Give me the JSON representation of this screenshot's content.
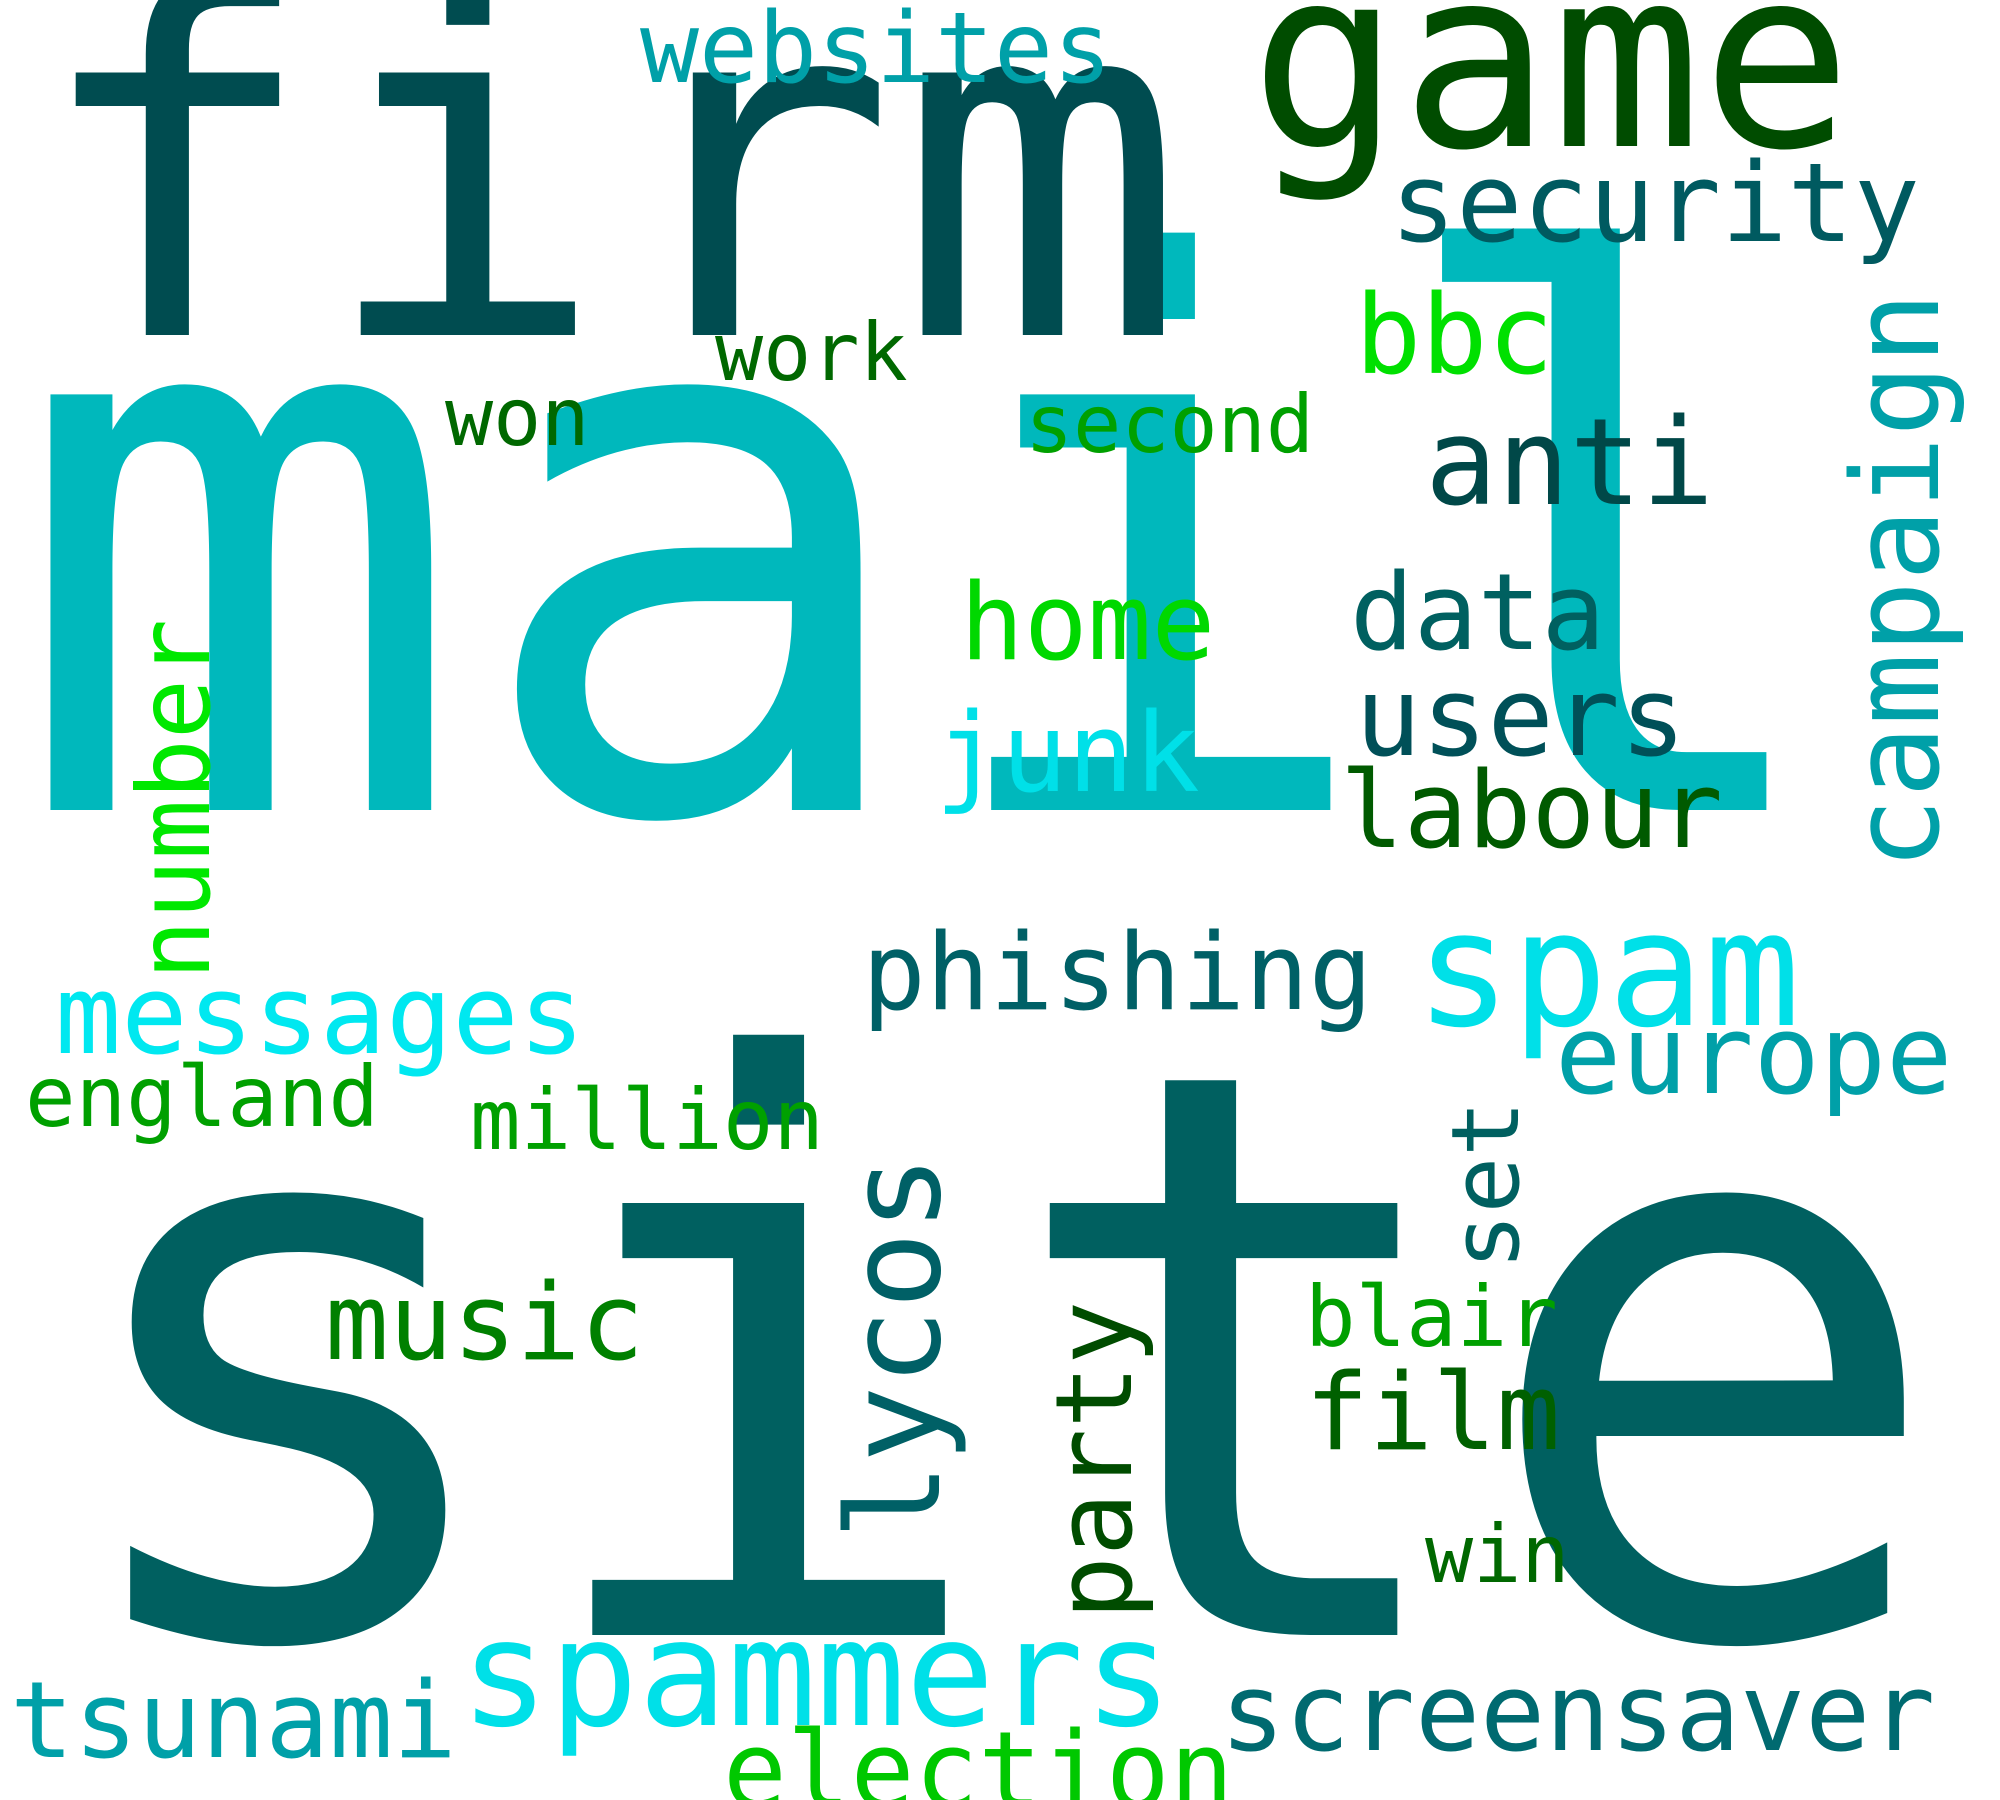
{
  "words": {
    "site": {
      "text": "site",
      "color": "#006060"
    },
    "mail": {
      "text": "mail",
      "color": "#00b8bc"
    },
    "firm": {
      "text": "firm",
      "color": "#004c50"
    },
    "game": {
      "text": "game",
      "color": "#004c00"
    },
    "websites": {
      "text": "websites",
      "color": "#00a0a8"
    },
    "security": {
      "text": "security",
      "color": "#005a60"
    },
    "bbc": {
      "text": "bbc",
      "color": "#00e000"
    },
    "work": {
      "text": "work",
      "color": "#006800"
    },
    "won": {
      "text": "won",
      "color": "#006800"
    },
    "second": {
      "text": "second",
      "color": "#00a000"
    },
    "anti": {
      "text": "anti",
      "color": "#004848"
    },
    "campaign": {
      "text": "campaign",
      "color": "#00a0a8"
    },
    "number": {
      "text": "number",
      "color": "#00e800"
    },
    "home": {
      "text": "home",
      "color": "#00d800"
    },
    "data": {
      "text": "data",
      "color": "#006060"
    },
    "users": {
      "text": "users",
      "color": "#005058"
    },
    "junk": {
      "text": "junk",
      "color": "#00e0e8"
    },
    "labour": {
      "text": "labour",
      "color": "#005a00"
    },
    "phishing": {
      "text": "phishing",
      "color": "#006066"
    },
    "spam": {
      "text": "spam",
      "color": "#00e0e8"
    },
    "messages": {
      "text": "messages",
      "color": "#00e8f0"
    },
    "europe": {
      "text": "europe",
      "color": "#00a0a8"
    },
    "lycos": {
      "text": "lycos",
      "color": "#006066"
    },
    "england": {
      "text": "england",
      "color": "#00a000"
    },
    "million": {
      "text": "million",
      "color": "#00a000"
    },
    "set": {
      "text": "set",
      "color": "#006060"
    },
    "music": {
      "text": "music",
      "color": "#008000"
    },
    "party": {
      "text": "party",
      "color": "#004c00"
    },
    "blair": {
      "text": "blair",
      "color": "#00a000"
    },
    "film": {
      "text": "film",
      "color": "#006000"
    },
    "win": {
      "text": "win",
      "color": "#006800"
    },
    "spammers": {
      "text": "spammers",
      "color": "#00e0e8"
    },
    "tsunami": {
      "text": "tsunami",
      "color": "#00a0a8"
    },
    "screensaver": {
      "text": "screensaver",
      "color": "#006a70"
    },
    "election": {
      "text": "election",
      "color": "#00c800"
    }
  }
}
